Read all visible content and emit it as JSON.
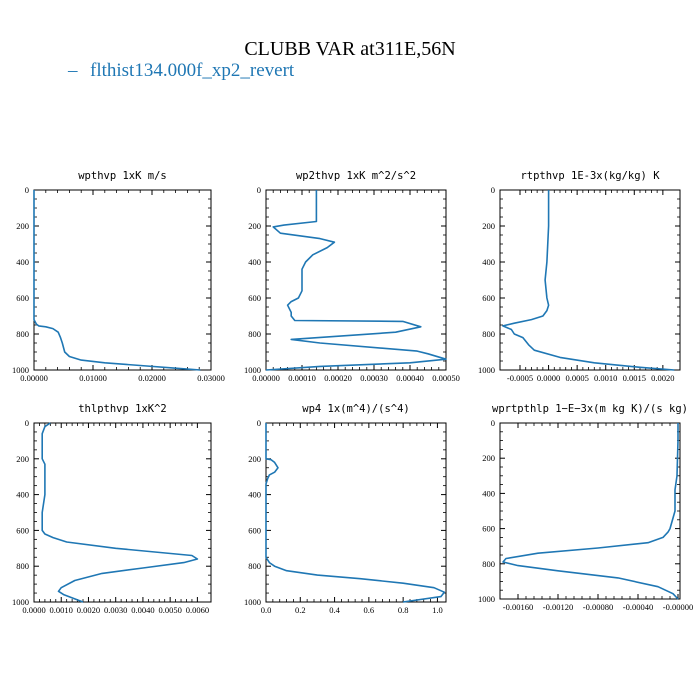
{
  "figure": {
    "title": "CLUBB VAR at311E,56N",
    "line_color": "#1f77b4"
  },
  "chart_data": [
    {
      "type": "line",
      "title": "wpthvp  1xK m/s",
      "series": [
        {
          "name": "flthist134.000f_xp2_revert",
          "x": [
            0.0,
            0.0,
            0.0,
            0.0,
            0.0,
            0.0,
            0.0,
            0.0004,
            0.0008,
            0.002,
            0.0032,
            0.0041,
            0.0045,
            0.0048,
            0.0052,
            0.006,
            0.008,
            0.012,
            0.018,
            0.024,
            0.0282
          ],
          "y": [
            0,
            100,
            300,
            500,
            600,
            680,
            720,
            745,
            755,
            760,
            770,
            790,
            820,
            850,
            900,
            925,
            945,
            960,
            975,
            990,
            1000
          ]
        }
      ],
      "xlim": [
        0,
        0.03
      ],
      "ylim": [
        1000,
        0
      ],
      "xticks": [
        0,
        0.01,
        0.02,
        0.03
      ],
      "xtick_labels": [
        "0.00000",
        "0.01000",
        "0.02000",
        "0.03000"
      ],
      "yticks": [
        0,
        200,
        400,
        600,
        800,
        1000
      ],
      "ytick_labels": [
        "0",
        "200",
        "400",
        "600",
        "800",
        "1000"
      ]
    },
    {
      "type": "line",
      "title": "wp2thvp  1xK m^2/s^2",
      "series": [
        {
          "name": "flthist134.000f_xp2_revert",
          "x": [
            0.00014,
            0.00014,
            0.00014,
            5e-05,
            2e-05,
            4e-05,
            0.00015,
            0.00019,
            0.00017,
            0.00013,
            0.00011,
            0.0001,
            0.0001,
            0.0001,
            0.0001,
            9e-05,
            7e-05,
            6e-05,
            7e-05,
            7e-05,
            8e-05,
            0.00038,
            0.00043,
            0.00036,
            7e-05,
            0.00015,
            0.00042,
            0.00045,
            0.0005,
            0.0004,
            0.00015,
            0.0
          ],
          "y": [
            0,
            120,
            175,
            195,
            205,
            240,
            270,
            290,
            320,
            360,
            400,
            440,
            480,
            520,
            560,
            600,
            620,
            640,
            680,
            700,
            725,
            730,
            760,
            790,
            830,
            850,
            895,
            910,
            940,
            960,
            980,
            1000
          ]
        }
      ],
      "xlim": [
        0,
        0.0005
      ],
      "ylim": [
        1000,
        0
      ],
      "xticks": [
        0,
        0.0001,
        0.0002,
        0.0003,
        0.0004,
        0.0005
      ],
      "xtick_labels": [
        "0.00000",
        "0.00010",
        "0.00020",
        "0.00030",
        "0.00040",
        "0.00050"
      ],
      "yticks": [
        0,
        200,
        400,
        600,
        800,
        1000
      ],
      "ytick_labels": [
        "0",
        "200",
        "400",
        "600",
        "800",
        "1000"
      ]
    },
    {
      "type": "line",
      "title": "rtpthvp  1E-3x(kg/kg) K",
      "series": [
        {
          "name": "flthist134.000f_xp2_revert",
          "x": [
            0.0,
            0.0,
            -3e-05,
            -6e-05,
            -3e-05,
            0.0,
            -3e-05,
            -0.0001,
            -0.0003,
            -0.0006,
            -0.0008,
            -0.00065,
            -0.0006,
            -0.00045,
            -0.00035,
            -0.00025,
            0.0002,
            0.0008,
            0.0016,
            0.0022
          ],
          "y": [
            0,
            200,
            400,
            500,
            600,
            640,
            670,
            700,
            720,
            740,
            755,
            775,
            800,
            820,
            860,
            890,
            930,
            960,
            985,
            1000
          ]
        }
      ],
      "xlim": [
        -0.00085,
        0.0023
      ],
      "ylim": [
        1000,
        0
      ],
      "xticks": [
        -0.0005,
        0.0,
        0.0005,
        0.001,
        0.0015,
        0.002
      ],
      "xtick_labels": [
        "-0.0005",
        "0.0000",
        "0.0005",
        "0.0010",
        "0.0015",
        "0.0020"
      ],
      "yticks": [
        0,
        200,
        400,
        600,
        800,
        1000
      ],
      "ytick_labels": [
        "0",
        "200",
        "400",
        "600",
        "800",
        "1000"
      ]
    },
    {
      "type": "line",
      "title": "thlpthvp  1xK^2",
      "series": [
        {
          "name": "flthist134.000f_xp2_revert",
          "x": [
            0.0006,
            0.0004,
            0.0003,
            0.0003,
            0.0003,
            0.0004,
            0.0004,
            0.0004,
            0.0003,
            0.0003,
            0.0003,
            0.0004,
            0.0007,
            0.0012,
            0.003,
            0.0058,
            0.006,
            0.0055,
            0.004,
            0.0025,
            0.0015,
            0.001,
            0.0009,
            0.0011,
            0.0018
          ],
          "y": [
            0,
            20,
            60,
            120,
            200,
            230,
            300,
            400,
            500,
            560,
            600,
            620,
            640,
            665,
            700,
            740,
            760,
            780,
            810,
            840,
            880,
            920,
            940,
            960,
            1000
          ]
        }
      ],
      "xlim": [
        0,
        0.0065
      ],
      "ylim": [
        1000,
        0
      ],
      "xticks": [
        0,
        0.001,
        0.002,
        0.003,
        0.004,
        0.005,
        0.006
      ],
      "xtick_labels": [
        "0.0000",
        "0.0010",
        "0.0020",
        "0.0030",
        "0.0040",
        "0.0050",
        "0.0060"
      ],
      "yticks": [
        0,
        200,
        400,
        600,
        800,
        1000
      ],
      "ytick_labels": [
        "0",
        "200",
        "400",
        "600",
        "800",
        "1000"
      ]
    },
    {
      "type": "line",
      "title": "wp4  1x(m^4)/(s^4)",
      "series": [
        {
          "name": "flthist134.000f_xp2_revert",
          "x": [
            0.0,
            0.0,
            0.0,
            0.03,
            0.05,
            0.07,
            0.05,
            0.02,
            0.01,
            0.0,
            0.0,
            0.0,
            0.0,
            0.02,
            0.05,
            0.12,
            0.3,
            0.55,
            0.8,
            0.98,
            1.04,
            1.02,
            0.8
          ],
          "y": [
            0,
            180,
            200,
            205,
            220,
            250,
            275,
            290,
            310,
            340,
            500,
            700,
            750,
            780,
            800,
            825,
            850,
            870,
            895,
            920,
            945,
            970,
            1000
          ]
        }
      ],
      "xlim": [
        0,
        1.05
      ],
      "ylim": [
        1000,
        0
      ],
      "xticks": [
        0,
        0.2,
        0.4,
        0.6,
        0.8,
        1.0
      ],
      "xtick_labels": [
        "0.0",
        "0.2",
        "0.4",
        "0.6",
        "0.8",
        "1.0"
      ],
      "yticks": [
        0,
        200,
        400,
        600,
        800,
        1000
      ],
      "ytick_labels": [
        "0",
        "200",
        "400",
        "600",
        "800",
        "1000"
      ]
    },
    {
      "type": "line",
      "title": "wprtpthlp  1−E−3x(m kg K)/(s kg)",
      "series": [
        {
          "name": "flthist134.000f_xp2_revert",
          "x": [
            0.0,
            0.0,
            -1e-05,
            -3e-05,
            -3e-05,
            -8e-05,
            -0.0001,
            -0.00015,
            -0.0003,
            -0.0008,
            -0.0014,
            -0.00172,
            -0.00175,
            -0.0016,
            -0.0012,
            -0.0006,
            -0.0002,
            -5e-05,
            0.0
          ],
          "y": [
            0,
            100,
            300,
            380,
            500,
            600,
            620,
            650,
            680,
            710,
            740,
            770,
            790,
            810,
            840,
            880,
            930,
            970,
            1000
          ]
        }
      ],
      "xlim": [
        -0.00178,
        2e-05
      ],
      "ylim": [
        1000,
        0
      ],
      "xticks": [
        -0.0016,
        -0.0012,
        -0.0008,
        -0.0004,
        0.0
      ],
      "xtick_labels": [
        "-0.00160",
        "-0.00120",
        "-0.00080",
        "-0.00040",
        "-0.00000"
      ],
      "yticks": [
        0,
        200,
        400,
        600,
        800,
        1000
      ],
      "ytick_labels": [
        "0",
        "200",
        "400",
        "600",
        "800",
        "1000"
      ]
    }
  ]
}
